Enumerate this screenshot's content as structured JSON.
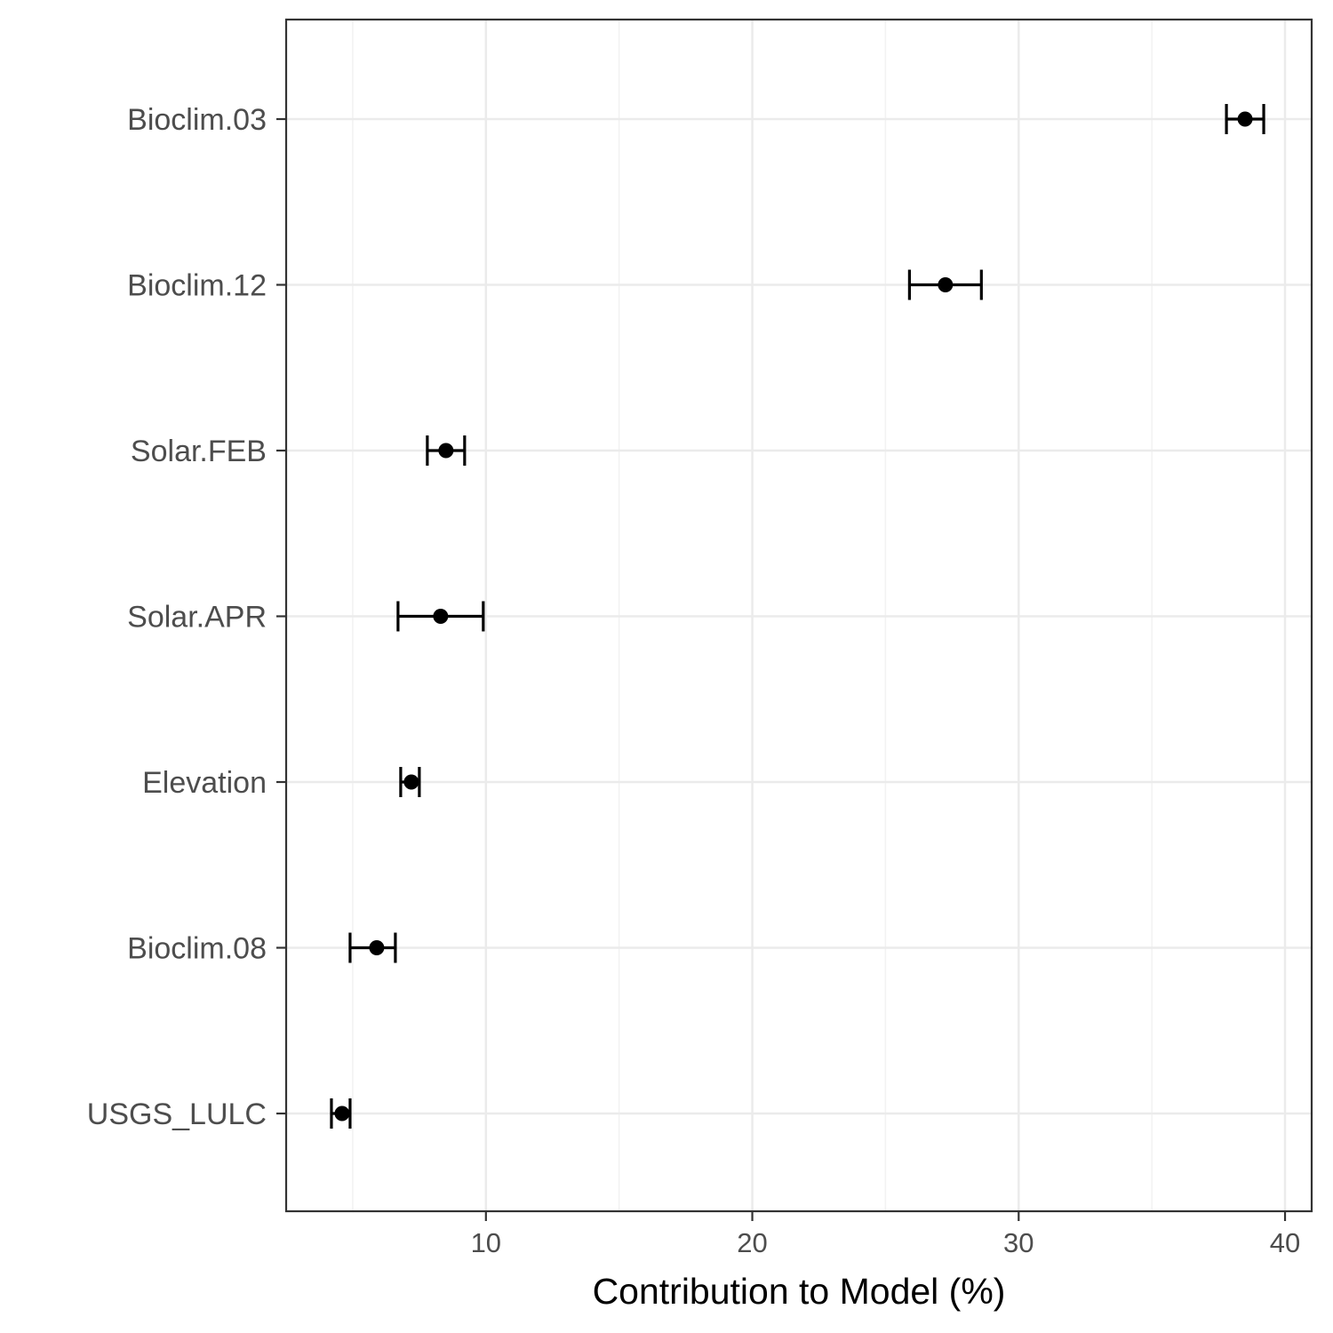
{
  "chart_data": {
    "type": "scatter",
    "subtype": "dot-with-error-bars",
    "title": "",
    "xlabel": "Contribution to Model (%)",
    "ylabel": "",
    "xlim": [
      2.5,
      41
    ],
    "x_ticks": [
      10,
      20,
      30,
      40
    ],
    "x_minor_ticks": [
      5,
      15,
      25,
      35
    ],
    "grid": true,
    "legend": "none",
    "categories": [
      "Bioclim.03",
      "Bioclim.12",
      "Solar.FEB",
      "Solar.APR",
      "Elevation",
      "Bioclim.08",
      "USGS_LULC"
    ],
    "series": [
      {
        "values": [
          38.5,
          27.25,
          8.5,
          8.3,
          7.2,
          5.9,
          4.6
        ],
        "lower": [
          37.8,
          25.9,
          7.8,
          6.7,
          6.8,
          4.9,
          4.2
        ],
        "upper": [
          39.2,
          28.6,
          9.2,
          9.9,
          7.5,
          6.6,
          4.9
        ]
      }
    ],
    "colors": {
      "point": "#000000",
      "grid_major": "#ebebeb",
      "grid_minor": "#f2f2f2",
      "panel_border": "#333333",
      "tick_label": "#4d4d4d"
    }
  }
}
